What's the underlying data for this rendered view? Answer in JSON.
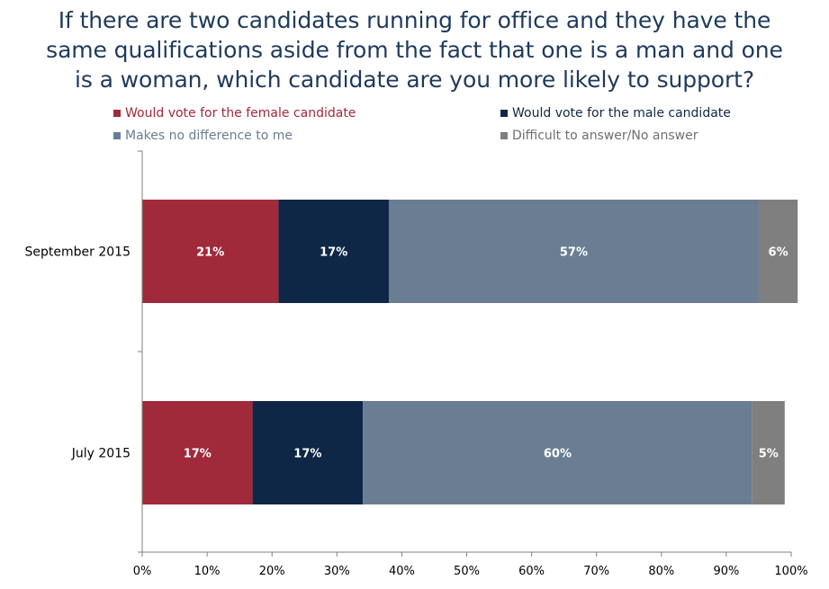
{
  "title_lines": [
    "If there are two candidates running for office and they have the",
    "same qualifications aside from the fact that one is a man and one",
    "is a woman, which candidate are you more likely to support?"
  ],
  "chart_data": {
    "type": "bar",
    "orientation": "horizontal",
    "stacked": true,
    "title": "If there are two candidates running for office and they have the same qualifications aside from the fact that one is a man and one is a woman, which candidate are you more likely to support?",
    "categories": [
      "September 2015",
      "July 2015"
    ],
    "series": [
      {
        "name": "Would vote for the female candidate",
        "color": "#a0293a",
        "values": [
          21,
          17
        ],
        "labels": [
          "21%",
          "17%"
        ]
      },
      {
        "name": "Would vote for the male candidate",
        "color": "#0f2746",
        "values": [
          17,
          17
        ],
        "labels": [
          "17%",
          "17%"
        ]
      },
      {
        "name": "Makes no difference to me",
        "color": "#6a7d93",
        "values": [
          57,
          60
        ],
        "labels": [
          "57%",
          "60%"
        ]
      },
      {
        "name": "Difficult to answer/No answer",
        "color": "#7f7f7f",
        "values": [
          6,
          5
        ],
        "labels": [
          "6%",
          "5%"
        ]
      }
    ],
    "xlim": [
      0,
      100
    ],
    "xticks": [
      "0%",
      "10%",
      "20%",
      "30%",
      "40%",
      "50%",
      "60%",
      "70%",
      "80%",
      "90%",
      "100%"
    ],
    "legend_position": "top",
    "legend_text_colors": [
      "#a0293a",
      "#0f2746",
      "#6a7d93",
      "#6f6f6f"
    ],
    "grid": false
  }
}
